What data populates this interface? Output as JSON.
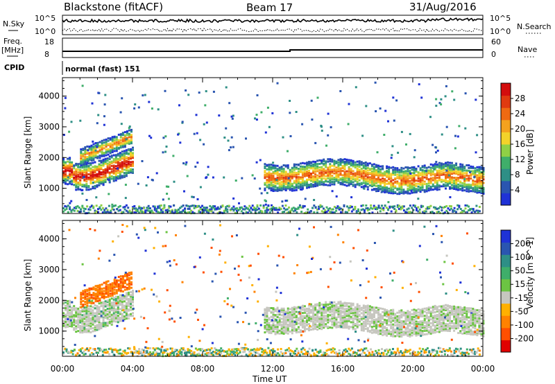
{
  "header": {
    "station": "Blackstone (fitACF)",
    "beam": "Beam 17",
    "date": "31/Aug/2016"
  },
  "panels": {
    "nsky": {
      "left_label": "N.Sky",
      "right_label": "N.Search",
      "left_ticks": [
        "10^5",
        "10^0"
      ],
      "right_ticks": [
        "10^5",
        "10^0"
      ]
    },
    "freq": {
      "left_label_1": "Freq.",
      "left_label_2": "[MHz]",
      "right_label": "Nave",
      "left_ticks": [
        "18",
        "8"
      ],
      "right_ticks": [
        "60",
        "0"
      ]
    },
    "cpid": {
      "label": "CPID",
      "text": "normal (fast) 151"
    }
  },
  "colors": {
    "power_scale": [
      "#1f32d6",
      "#2a55b0",
      "#2e8f86",
      "#3fae6a",
      "#8fd046",
      "#f3d22a",
      "#f4a21e",
      "#ef6a12",
      "#e03a10",
      "#d30d0d"
    ],
    "velocity_scale": [
      "#1f32d6",
      "#2a55b0",
      "#2e8f86",
      "#3fae6a",
      "#6cc443",
      "#c6c6bf",
      "#ffb000",
      "#ff8200",
      "#ff4f00",
      "#e00000"
    ]
  },
  "chart_data": [
    {
      "type": "heatmap",
      "title": "",
      "xlabel": "Time UT",
      "ylabel": "Slant Range [km]",
      "x_ticks": [
        "00:00",
        "04:00",
        "08:00",
        "12:00",
        "16:00",
        "20:00",
        "00:00"
      ],
      "x_range_hours": [
        0,
        24
      ],
      "y_ticks": [
        1000,
        2000,
        3000,
        4000
      ],
      "y_range_km": [
        180,
        4600
      ],
      "colorbar": {
        "label": "Power [dB]",
        "ticks": [
          4,
          8,
          12,
          16,
          20,
          24,
          28
        ],
        "range": [
          0,
          32
        ]
      },
      "features": [
        {
          "t0": 0.0,
          "t1": 4.0,
          "y0": 1800,
          "y1": 1100,
          "intensity": 1.0
        },
        {
          "t0": 11.5,
          "t1": 24.0,
          "y0": 1700,
          "y1": 1250,
          "intensity": 0.7
        },
        {
          "t0": 1.0,
          "t1": 3.9,
          "y0": 2050,
          "y1": 2700,
          "intensity": 0.6
        }
      ]
    },
    {
      "type": "heatmap",
      "title": "",
      "xlabel": "Time UT",
      "ylabel": "Slant Range [km]",
      "x_ticks": [
        "00:00",
        "04:00",
        "08:00",
        "12:00",
        "16:00",
        "20:00",
        "00:00"
      ],
      "x_range_hours": [
        0,
        24
      ],
      "y_ticks": [
        1000,
        2000,
        3000,
        4000
      ],
      "y_range_km": [
        180,
        4600
      ],
      "colorbar": {
        "label": "Velocity [m s^-1]",
        "ticks": [
          200,
          100,
          50,
          15,
          -15,
          -50,
          -100,
          -200
        ],
        "range": [
          -250,
          250
        ]
      },
      "features": [
        {
          "t0": 0.0,
          "t1": 4.0,
          "y0": 1700,
          "y1": 1100,
          "velocity": 0
        },
        {
          "t0": 11.5,
          "t1": 24.0,
          "y0": 1700,
          "y1": 1250,
          "velocity": 0
        },
        {
          "t0": 1.0,
          "t1": 3.9,
          "y0": 2050,
          "y1": 2700,
          "velocity": -60
        }
      ]
    }
  ]
}
